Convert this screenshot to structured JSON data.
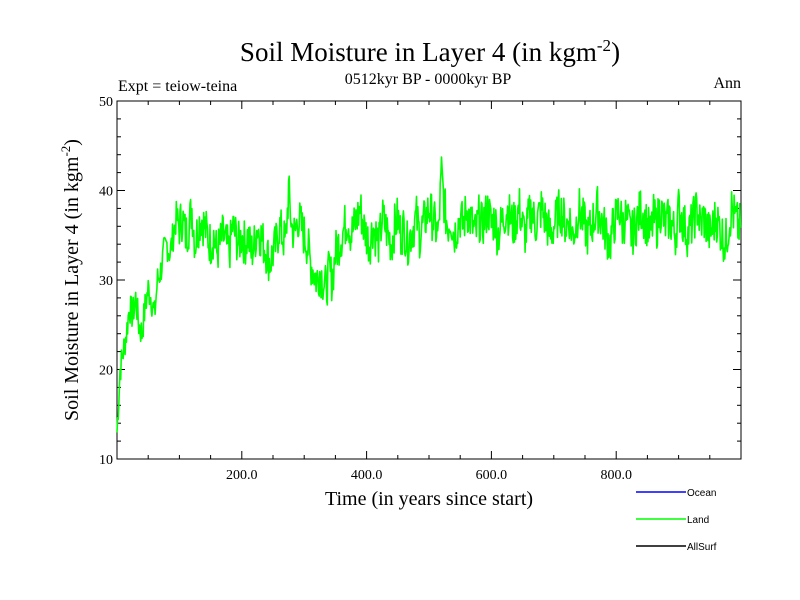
{
  "chart_data": {
    "type": "line",
    "title": "Soil Moisture in Layer 4 (in kgm",
    "title_sup": "-2",
    "title_end": ")",
    "subtitle": "0512kyr BP - 0000kyr BP",
    "experiment": "Expt = teiow-teina",
    "season": "Ann",
    "xlabel": "Time (in years since start)",
    "ylabel": "Soil Moisture in Layer 4 (in kgm",
    "ylabel_sup": "-2",
    "ylabel_end": ")",
    "xlim": [
      0,
      1000
    ],
    "ylim": [
      10,
      50
    ],
    "xticks": [
      200,
      400,
      600,
      800
    ],
    "xtick_labels": [
      "200.0",
      "400.0",
      "600.0",
      "800.0"
    ],
    "yticks": [
      10,
      20,
      30,
      40,
      50
    ],
    "ytick_labels": [
      "10",
      "20",
      "30",
      "40",
      "50"
    ],
    "legend": [
      {
        "name": "Ocean",
        "color": "#0000ff"
      },
      {
        "name": "Land",
        "color": "#00ff00"
      },
      {
        "name": "AllSurf",
        "color": "#000000"
      }
    ],
    "series": [
      {
        "name": "Land",
        "color": "#00ff00",
        "x_step": 5,
        "x_start": 0,
        "values": [
          13,
          20,
          22,
          24,
          27,
          26,
          28,
          25,
          24,
          27,
          29,
          28,
          26,
          30,
          31,
          33,
          34,
          33,
          35,
          37,
          36,
          37,
          35,
          36,
          38,
          34,
          36,
          37,
          36,
          35,
          34,
          35,
          33,
          34,
          35,
          34,
          33,
          36,
          35,
          34,
          35,
          34,
          35,
          33,
          34,
          36,
          35,
          34,
          33,
          32,
          33,
          34,
          36,
          35,
          34,
          40,
          36,
          35,
          37,
          36,
          35,
          34,
          32,
          31,
          30,
          31,
          30,
          29,
          31,
          30,
          33,
          34,
          35,
          36,
          37,
          35,
          36,
          37,
          38,
          36,
          35,
          34,
          36,
          35,
          34,
          37,
          36,
          35,
          34,
          36,
          37,
          35,
          36,
          34,
          35,
          36,
          37,
          35,
          36,
          37,
          38,
          37,
          36,
          35,
          42,
          38,
          36,
          37,
          35,
          36,
          37,
          36,
          38,
          37,
          36,
          35,
          37,
          36,
          37,
          38,
          36,
          37,
          35,
          36,
          37,
          38,
          37,
          36,
          37,
          38,
          36,
          35,
          37,
          38,
          36,
          37,
          38,
          37,
          36,
          35,
          36,
          37,
          38,
          37,
          36,
          37,
          35,
          36,
          38,
          37,
          36,
          35,
          36,
          37,
          38,
          37,
          36,
          35,
          34,
          36,
          37,
          38,
          36,
          37,
          36,
          35,
          36,
          37,
          38,
          37,
          36,
          35,
          37,
          36,
          38,
          37,
          36,
          37,
          36,
          35,
          38,
          37,
          36,
          35,
          36,
          37,
          38,
          36,
          37,
          36,
          35,
          36,
          37,
          36,
          35,
          34,
          36,
          38,
          37,
          36
        ]
      },
      {
        "name": "Ocean",
        "color": "#0000ff",
        "values": []
      },
      {
        "name": "AllSurf",
        "color": "#000000",
        "values": []
      }
    ]
  }
}
